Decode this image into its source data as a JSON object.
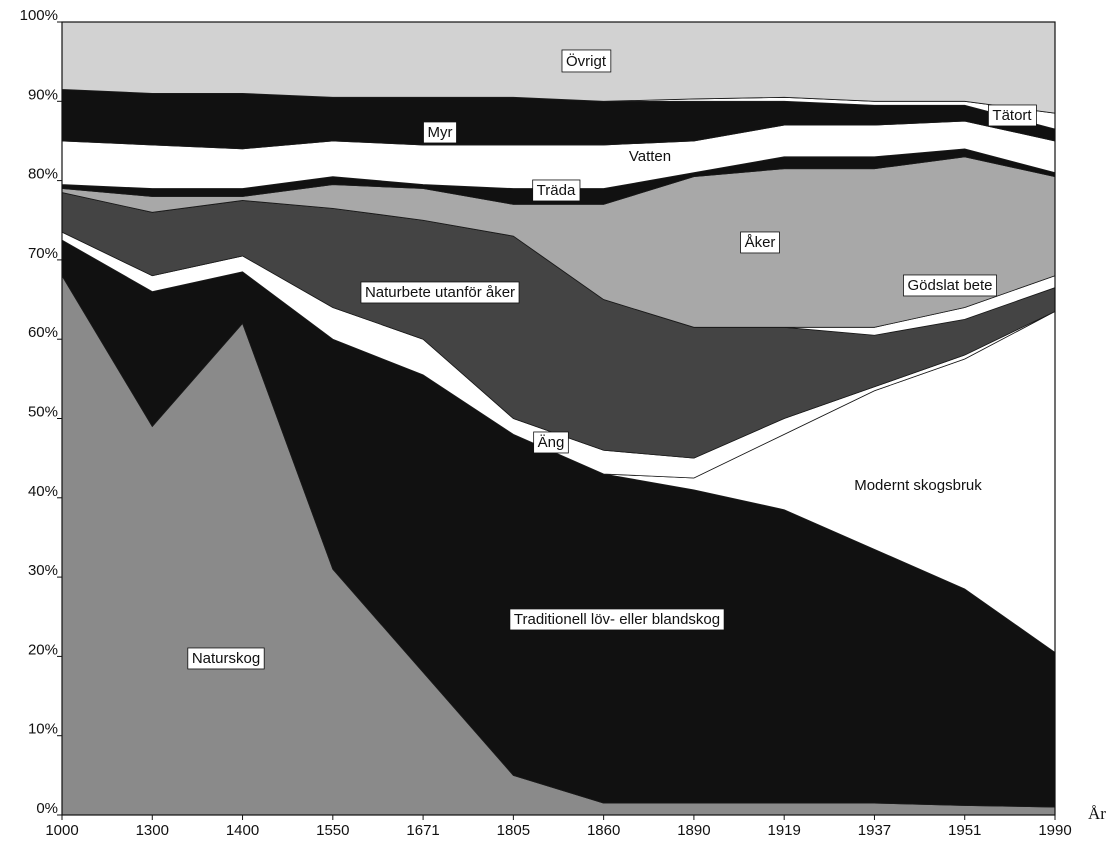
{
  "chart_data": {
    "type": "stacked_area",
    "x_label": "År",
    "categories": [
      "1000",
      "1300",
      "1400",
      "1550",
      "1671",
      "1805",
      "1860",
      "1890",
      "1919",
      "1937",
      "1951",
      "1990"
    ],
    "series": [
      {
        "name": "Naturskog",
        "color": "#8a8a8a",
        "values": [
          68,
          49,
          62,
          31,
          18,
          5,
          1.5,
          1.5,
          1.5,
          1.5,
          1.2,
          1
        ]
      },
      {
        "name": "Traditionell löv- eller blandskog",
        "color": "#111111",
        "values": [
          4.5,
          17,
          6.5,
          29,
          37.5,
          43,
          41.5,
          39.5,
          37,
          32,
          27.3,
          19.5
        ]
      },
      {
        "name": "Modernt skogsbruk",
        "color": "#ffffff",
        "values": [
          0,
          0,
          0,
          0,
          0,
          0,
          0,
          1.5,
          9.5,
          20,
          29,
          43
        ]
      },
      {
        "name": "Äng",
        "color": "#ffffff",
        "values": [
          1,
          2,
          2,
          4,
          4.5,
          2,
          3,
          2.5,
          2,
          0.5,
          0.5,
          0
        ]
      },
      {
        "name": "Naturbete utanför åker",
        "color": "#444444",
        "values": [
          5,
          8,
          7,
          12.5,
          15,
          23,
          19,
          16.5,
          11.5,
          6.5,
          4.5,
          3
        ]
      },
      {
        "name": "Gödslat bete",
        "color": "#ffffff",
        "values": [
          0,
          0,
          0,
          0,
          0,
          0,
          0,
          0,
          0,
          1,
          1.5,
          1.5
        ]
      },
      {
        "name": "Åker",
        "color": "#a8a8a8",
        "values": [
          0.5,
          2,
          0.5,
          3,
          4,
          4,
          12,
          19,
          20,
          20,
          19,
          12.5
        ]
      },
      {
        "name": "Träda",
        "color": "#111111",
        "values": [
          0.5,
          1,
          1,
          1,
          0.5,
          2,
          2,
          0.5,
          1.5,
          1.5,
          1,
          0.5
        ]
      },
      {
        "name": "Vatten",
        "color": "#ffffff",
        "values": [
          5.5,
          5.5,
          5,
          4.5,
          5,
          5.5,
          5.5,
          4,
          4,
          4,
          3.5,
          4
        ]
      },
      {
        "name": "Myr",
        "color": "#111111",
        "values": [
          6.5,
          6.5,
          7,
          5.5,
          6,
          6,
          5.5,
          5,
          3,
          2.5,
          2,
          1.5
        ]
      },
      {
        "name": "Tätort",
        "color": "#ffffff",
        "values": [
          0,
          0,
          0,
          0,
          0,
          0,
          0,
          0.3,
          0.5,
          0.5,
          0.5,
          2
        ]
      },
      {
        "name": "Övrigt",
        "color": "#d2d2d2",
        "values": [
          8.5,
          9,
          9,
          9.5,
          9.5,
          9.5,
          10,
          9.7,
          9.5,
          10,
          10,
          11.5
        ]
      }
    ],
    "ylim": [
      0,
      100
    ],
    "yticks": [
      {
        "value": 0,
        "label": "0%"
      },
      {
        "value": 10,
        "label": "10%"
      },
      {
        "value": 20,
        "label": "20%"
      },
      {
        "value": 30,
        "label": "30%"
      },
      {
        "value": 40,
        "label": "40%"
      },
      {
        "value": 50,
        "label": "50%"
      },
      {
        "value": 60,
        "label": "60%"
      },
      {
        "value": 70,
        "label": "70%"
      },
      {
        "value": 80,
        "label": "80%"
      },
      {
        "value": 90,
        "label": "90%"
      },
      {
        "value": 100,
        "label": "100%"
      }
    ]
  }
}
